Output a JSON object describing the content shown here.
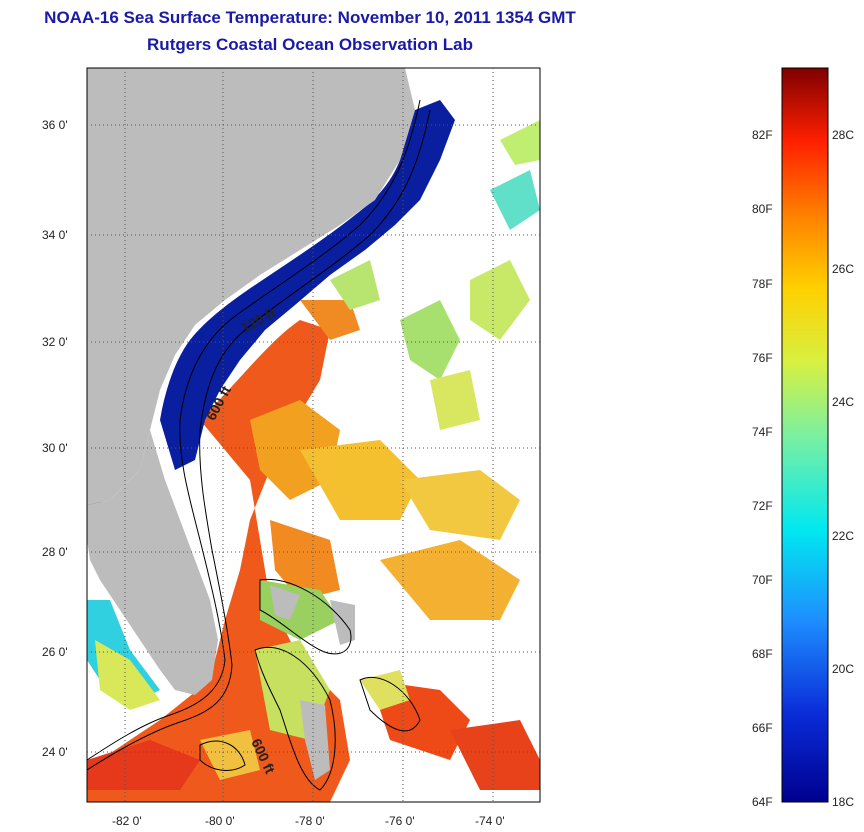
{
  "title": {
    "line1": "NOAA-16 Sea Surface Temperature:  November 10, 2011 1354 GMT",
    "line2": "Rutgers Coastal Ocean Observation Lab"
  },
  "map": {
    "latitude_labels": [
      "36 0'",
      "34 0'",
      "32 0'",
      "30 0'",
      "28 0'",
      "26 0'",
      "24 0'"
    ],
    "longitude_labels": [
      "-82 0'",
      "-80 0'",
      "-78 0'",
      "-76 0'",
      "-74 0'"
    ],
    "isobath_labels": [
      "120 ft",
      "600 ft",
      "600 ft"
    ],
    "colors": {
      "land": "#bcbcbc",
      "cloud": "#ffffff",
      "cold": "#0a1ea0",
      "warm": "#e8401a",
      "contour": "#000000"
    }
  },
  "colorbar": {
    "fahrenheit_labels": [
      "82F",
      "80F",
      "78F",
      "76F",
      "74F",
      "72F",
      "70F",
      "68F",
      "66F",
      "64F"
    ],
    "celsius_labels": [
      "28C",
      "26C",
      "24C",
      "22C",
      "20C",
      "18C"
    ]
  }
}
